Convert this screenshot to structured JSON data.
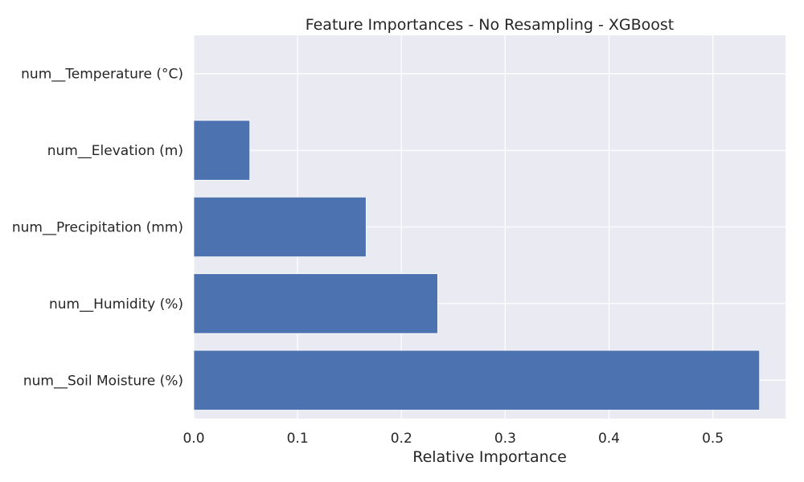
{
  "chart_data": {
    "type": "bar",
    "orientation": "horizontal",
    "title": "Feature Importances - No Resampling - XGBoost",
    "xlabel": "Relative Importance",
    "ylabel": "",
    "categories": [
      "num__Soil Moisture (%)",
      "num__Humidity (%)",
      "num__Precipitation (mm)",
      "num__Elevation (m)",
      "num__Temperature (°C)"
    ],
    "values": [
      0.545,
      0.235,
      0.166,
      0.054,
      0.0
    ],
    "xlim": [
      0,
      0.57
    ],
    "xticks": [
      0.0,
      0.1,
      0.2,
      0.3,
      0.4,
      0.5
    ],
    "xtick_labels": [
      "0.0",
      "0.1",
      "0.2",
      "0.3",
      "0.4",
      "0.5"
    ],
    "grid": true,
    "legend": "none"
  },
  "colors": {
    "bar": "#4c72b0",
    "plot_background": "#eaeaf2",
    "grid": "#ffffff",
    "text": "#262626"
  }
}
